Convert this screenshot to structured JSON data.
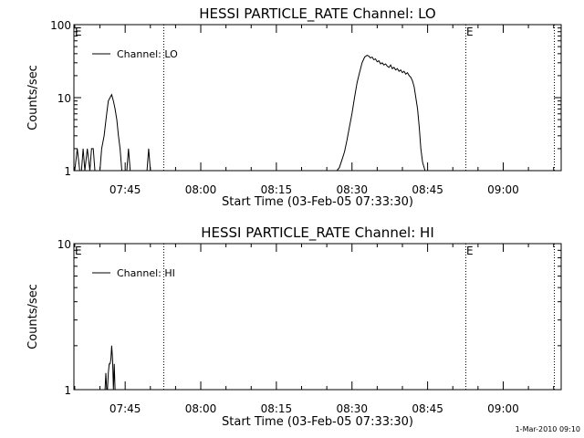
{
  "chart_data": [
    {
      "type": "line",
      "title": "HESSI PARTICLE_RATE Channel: LO",
      "xlabel": "Start Time (03-Feb-05 07:33:30)",
      "ylabel": "Counts/sec",
      "yscale": "log",
      "ylim": [
        1,
        100
      ],
      "xlim": [
        "07:34:50",
        "09:11:30"
      ],
      "y_ticks": [
        1,
        10,
        100
      ],
      "y_tick_labels": [
        "1",
        "10",
        "100"
      ],
      "x_ticks": [
        "07:45",
        "08:00",
        "08:15",
        "08:30",
        "08:45",
        "09:00"
      ],
      "x_tick_labels": [
        "07:45",
        "08:00",
        "08:15",
        "08:30",
        "08:45",
        "09:00"
      ],
      "grid": false,
      "legend_position": "top-left",
      "series": [
        {
          "name": "Channel: LO",
          "color": "#000000",
          "x": [
            "07:35:00",
            "07:35:30",
            "07:36:00",
            "07:36:20",
            "07:36:40",
            "07:37:00",
            "07:37:30",
            "07:38:00",
            "07:38:20",
            "07:38:40",
            "07:39:00",
            "07:39:40",
            "07:40:00",
            "07:40:20",
            "07:40:50",
            "07:41:20",
            "07:41:40",
            "07:42:00",
            "07:42:20",
            "07:42:40",
            "07:43:00",
            "07:43:20",
            "07:43:40",
            "07:44:00",
            "07:44:20",
            "07:44:40",
            "07:45:00",
            "07:45:20",
            "07:45:40",
            "07:46:00",
            "07:46:20",
            "07:46:40",
            "07:47:00",
            "07:47:20",
            "07:47:40",
            "07:48:00",
            "07:48:40",
            "07:49:00",
            "07:49:20",
            "07:49:40",
            "07:50:00",
            "07:50:20",
            "07:50:40",
            "07:51:00",
            "08:26:00",
            "08:27:00",
            "08:27:30",
            "08:28:00",
            "08:28:30",
            "08:29:00",
            "08:29:30",
            "08:30:00",
            "08:30:30",
            "08:31:00",
            "08:31:30",
            "08:32:00",
            "08:32:30",
            "08:33:00",
            "08:33:20",
            "08:33:40",
            "08:34:00",
            "08:34:20",
            "08:34:40",
            "08:35:00",
            "08:35:20",
            "08:35:40",
            "08:36:00",
            "08:36:20",
            "08:36:40",
            "08:37:00",
            "08:37:20",
            "08:37:40",
            "08:38:00",
            "08:38:20",
            "08:38:40",
            "08:39:00",
            "08:39:20",
            "08:39:40",
            "08:40:00",
            "08:40:20",
            "08:40:40",
            "08:41:00",
            "08:41:20",
            "08:41:40",
            "08:42:00",
            "08:42:20",
            "08:42:40",
            "08:43:00",
            "08:43:20",
            "08:43:40",
            "08:44:00",
            "08:44:30",
            "08:45:00",
            "09:11:30"
          ],
          "y": [
            1,
            2,
            1,
            1,
            2,
            1,
            2,
            1,
            2,
            2,
            1,
            1,
            1,
            2,
            3,
            6,
            9,
            10,
            11,
            9,
            7,
            5,
            3,
            2,
            1,
            1,
            1,
            1,
            2,
            1,
            1,
            1,
            1,
            1,
            1,
            1,
            1,
            1,
            1,
            2,
            1,
            1,
            1,
            1,
            1,
            1,
            1.1,
            1.4,
            1.8,
            2.6,
            4,
            6,
            10,
            16,
            22,
            30,
            36,
            38,
            37,
            35,
            36,
            33,
            34,
            31,
            32,
            29,
            30,
            28,
            29,
            27,
            26,
            28,
            25,
            26,
            24,
            25,
            23,
            24,
            22,
            23,
            21,
            22,
            20,
            19,
            17,
            14,
            10,
            7,
            4,
            2,
            1.3,
            1,
            1,
            1
          ]
        }
      ],
      "vertical_markers": [
        "07:52:30",
        "08:52:30",
        "09:10:00"
      ],
      "annotations": [
        {
          "text": "E",
          "x": "07:34:50"
        },
        {
          "text": "E",
          "x": "08:52:30"
        }
      ]
    },
    {
      "type": "line",
      "title": "HESSI PARTICLE_RATE Channel: HI",
      "xlabel": "Start Time (03-Feb-05 07:33:30)",
      "ylabel": "Counts/sec",
      "yscale": "log",
      "ylim": [
        1,
        10
      ],
      "xlim": [
        "07:34:50",
        "09:11:30"
      ],
      "y_ticks": [
        1,
        10
      ],
      "y_tick_labels": [
        "1",
        "10"
      ],
      "x_ticks": [
        "07:45",
        "08:00",
        "08:15",
        "08:30",
        "08:45",
        "09:00"
      ],
      "x_tick_labels": [
        "07:45",
        "08:00",
        "08:15",
        "08:30",
        "08:45",
        "09:00"
      ],
      "grid": false,
      "legend_position": "top-left",
      "series": [
        {
          "name": "Channel: HI",
          "color": "#000000",
          "x": [
            "07:40:50",
            "07:41:00",
            "07:41:10",
            "07:41:20",
            "07:41:30",
            "07:41:40",
            "07:41:50",
            "07:42:00",
            "07:42:10",
            "07:42:20",
            "07:42:30",
            "07:42:40",
            "07:42:50",
            "07:43:00",
            "07:43:30"
          ],
          "y": [
            1,
            1,
            1.3,
            1,
            1,
            1.3,
            1.5,
            1.5,
            1.6,
            2,
            1.6,
            1,
            1.5,
            1,
            1
          ]
        }
      ],
      "vertical_markers": [
        "07:52:30",
        "08:52:30",
        "09:10:00"
      ],
      "annotations": [
        {
          "text": "E",
          "x": "07:34:50"
        },
        {
          "text": "E",
          "x": "08:52:30"
        }
      ]
    }
  ],
  "footer": {
    "timestamp": "1-Mar-2010 09:10"
  }
}
